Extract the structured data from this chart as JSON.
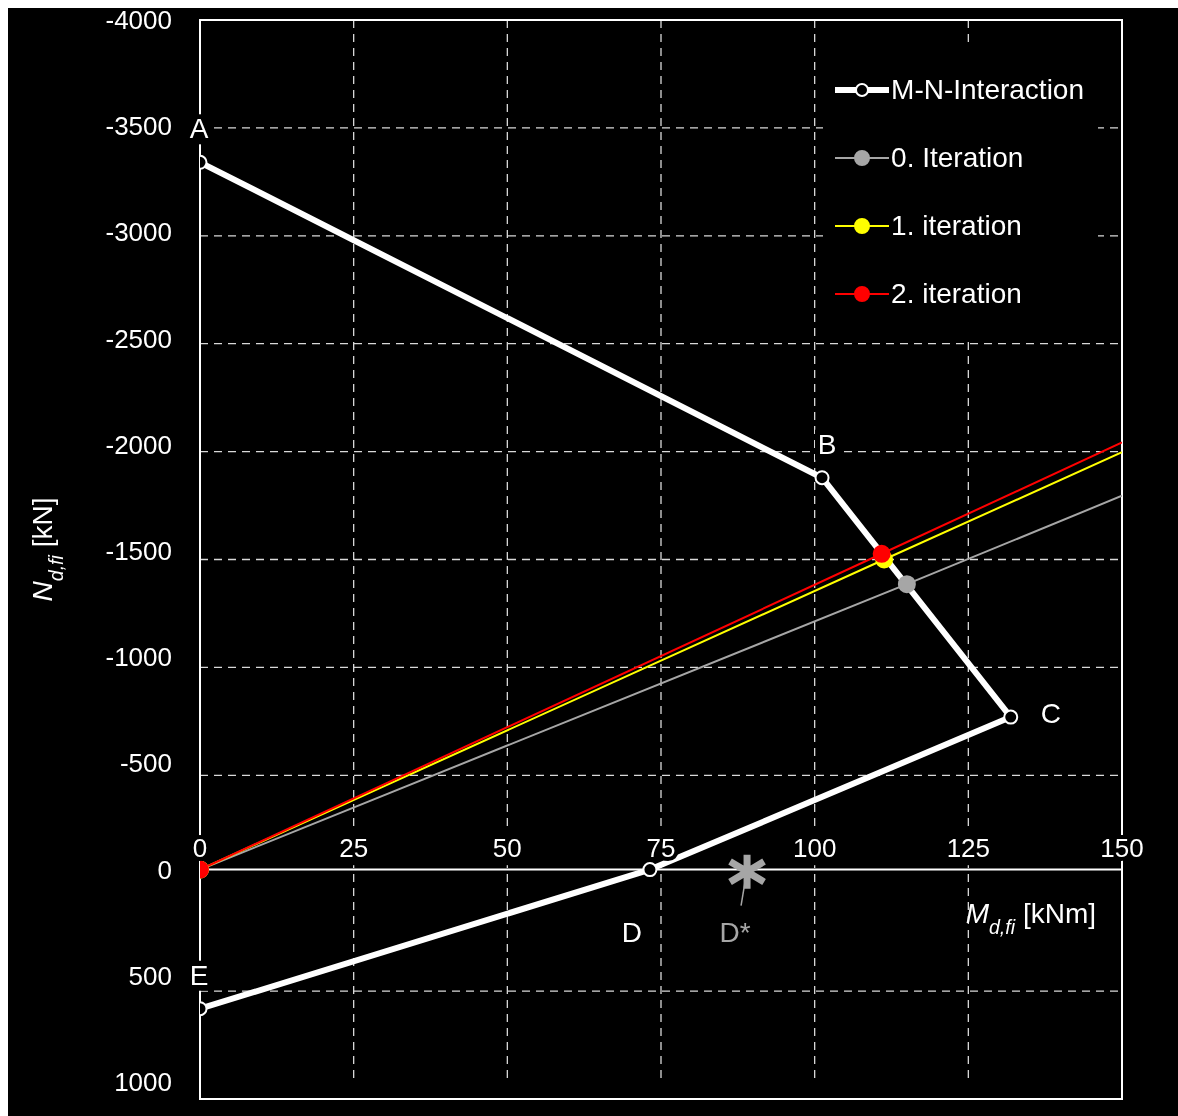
{
  "chart_data": {
    "type": "line",
    "xlabel": "M$_{d,fi}$ [kNm]",
    "ylabel": "N$_{d,fi}$ [kN]",
    "xlim": [
      0,
      150
    ],
    "xticks": [
      0,
      25,
      50,
      75,
      100,
      125,
      150
    ],
    "ylim": [
      1000,
      -4000
    ],
    "yticks": [
      -4000,
      -3500,
      -3000,
      -2500,
      -2000,
      -1500,
      -1000,
      -500,
      0,
      500,
      1000
    ],
    "grid": true,
    "legend": "top right",
    "marker": "circle",
    "line_style": "solid",
    "series": [
      {
        "name": "M-N-Interaction",
        "color": "#ffffff",
        "x": [
          0,
          101.2,
          131.9,
          73.2,
          0
        ],
        "values": [
          -3330,
          -1845,
          -718,
          0,
          655
        ]
      },
      {
        "name": "0. Iteration",
        "color": "#a6a6a6",
        "x": [
          0,
          115,
          150
        ],
        "values": [
          0,
          -1344,
          -1760
        ]
      },
      {
        "name": "1. iteration",
        "color": "#ffff00",
        "x": [
          0,
          111.3,
          150
        ],
        "values": [
          0,
          -1460,
          -1965
        ]
      },
      {
        "name": "2. iteration",
        "color": "#ff0000",
        "x": [
          0,
          110.9,
          150
        ],
        "values": [
          0,
          -1487,
          -2011
        ]
      },
      {
        "type": "scatter",
        "color": "#a6a6a6",
        "marker": "cross",
        "x": [
          89
        ],
        "values": [
          10
        ]
      }
    ],
    "annotations": [
      {
        "text": "A",
        "x": 0,
        "y": -3330
      },
      {
        "text": "B",
        "x": 101.2,
        "y": -1845
      },
      {
        "text": "C",
        "x": 131.9,
        "y": -718
      },
      {
        "text": "D",
        "x": 73.2,
        "y": 0
      },
      {
        "text": "E",
        "x": 0,
        "y": 655
      },
      {
        "text": "D*",
        "x": 89,
        "y": 10
      }
    ]
  }
}
